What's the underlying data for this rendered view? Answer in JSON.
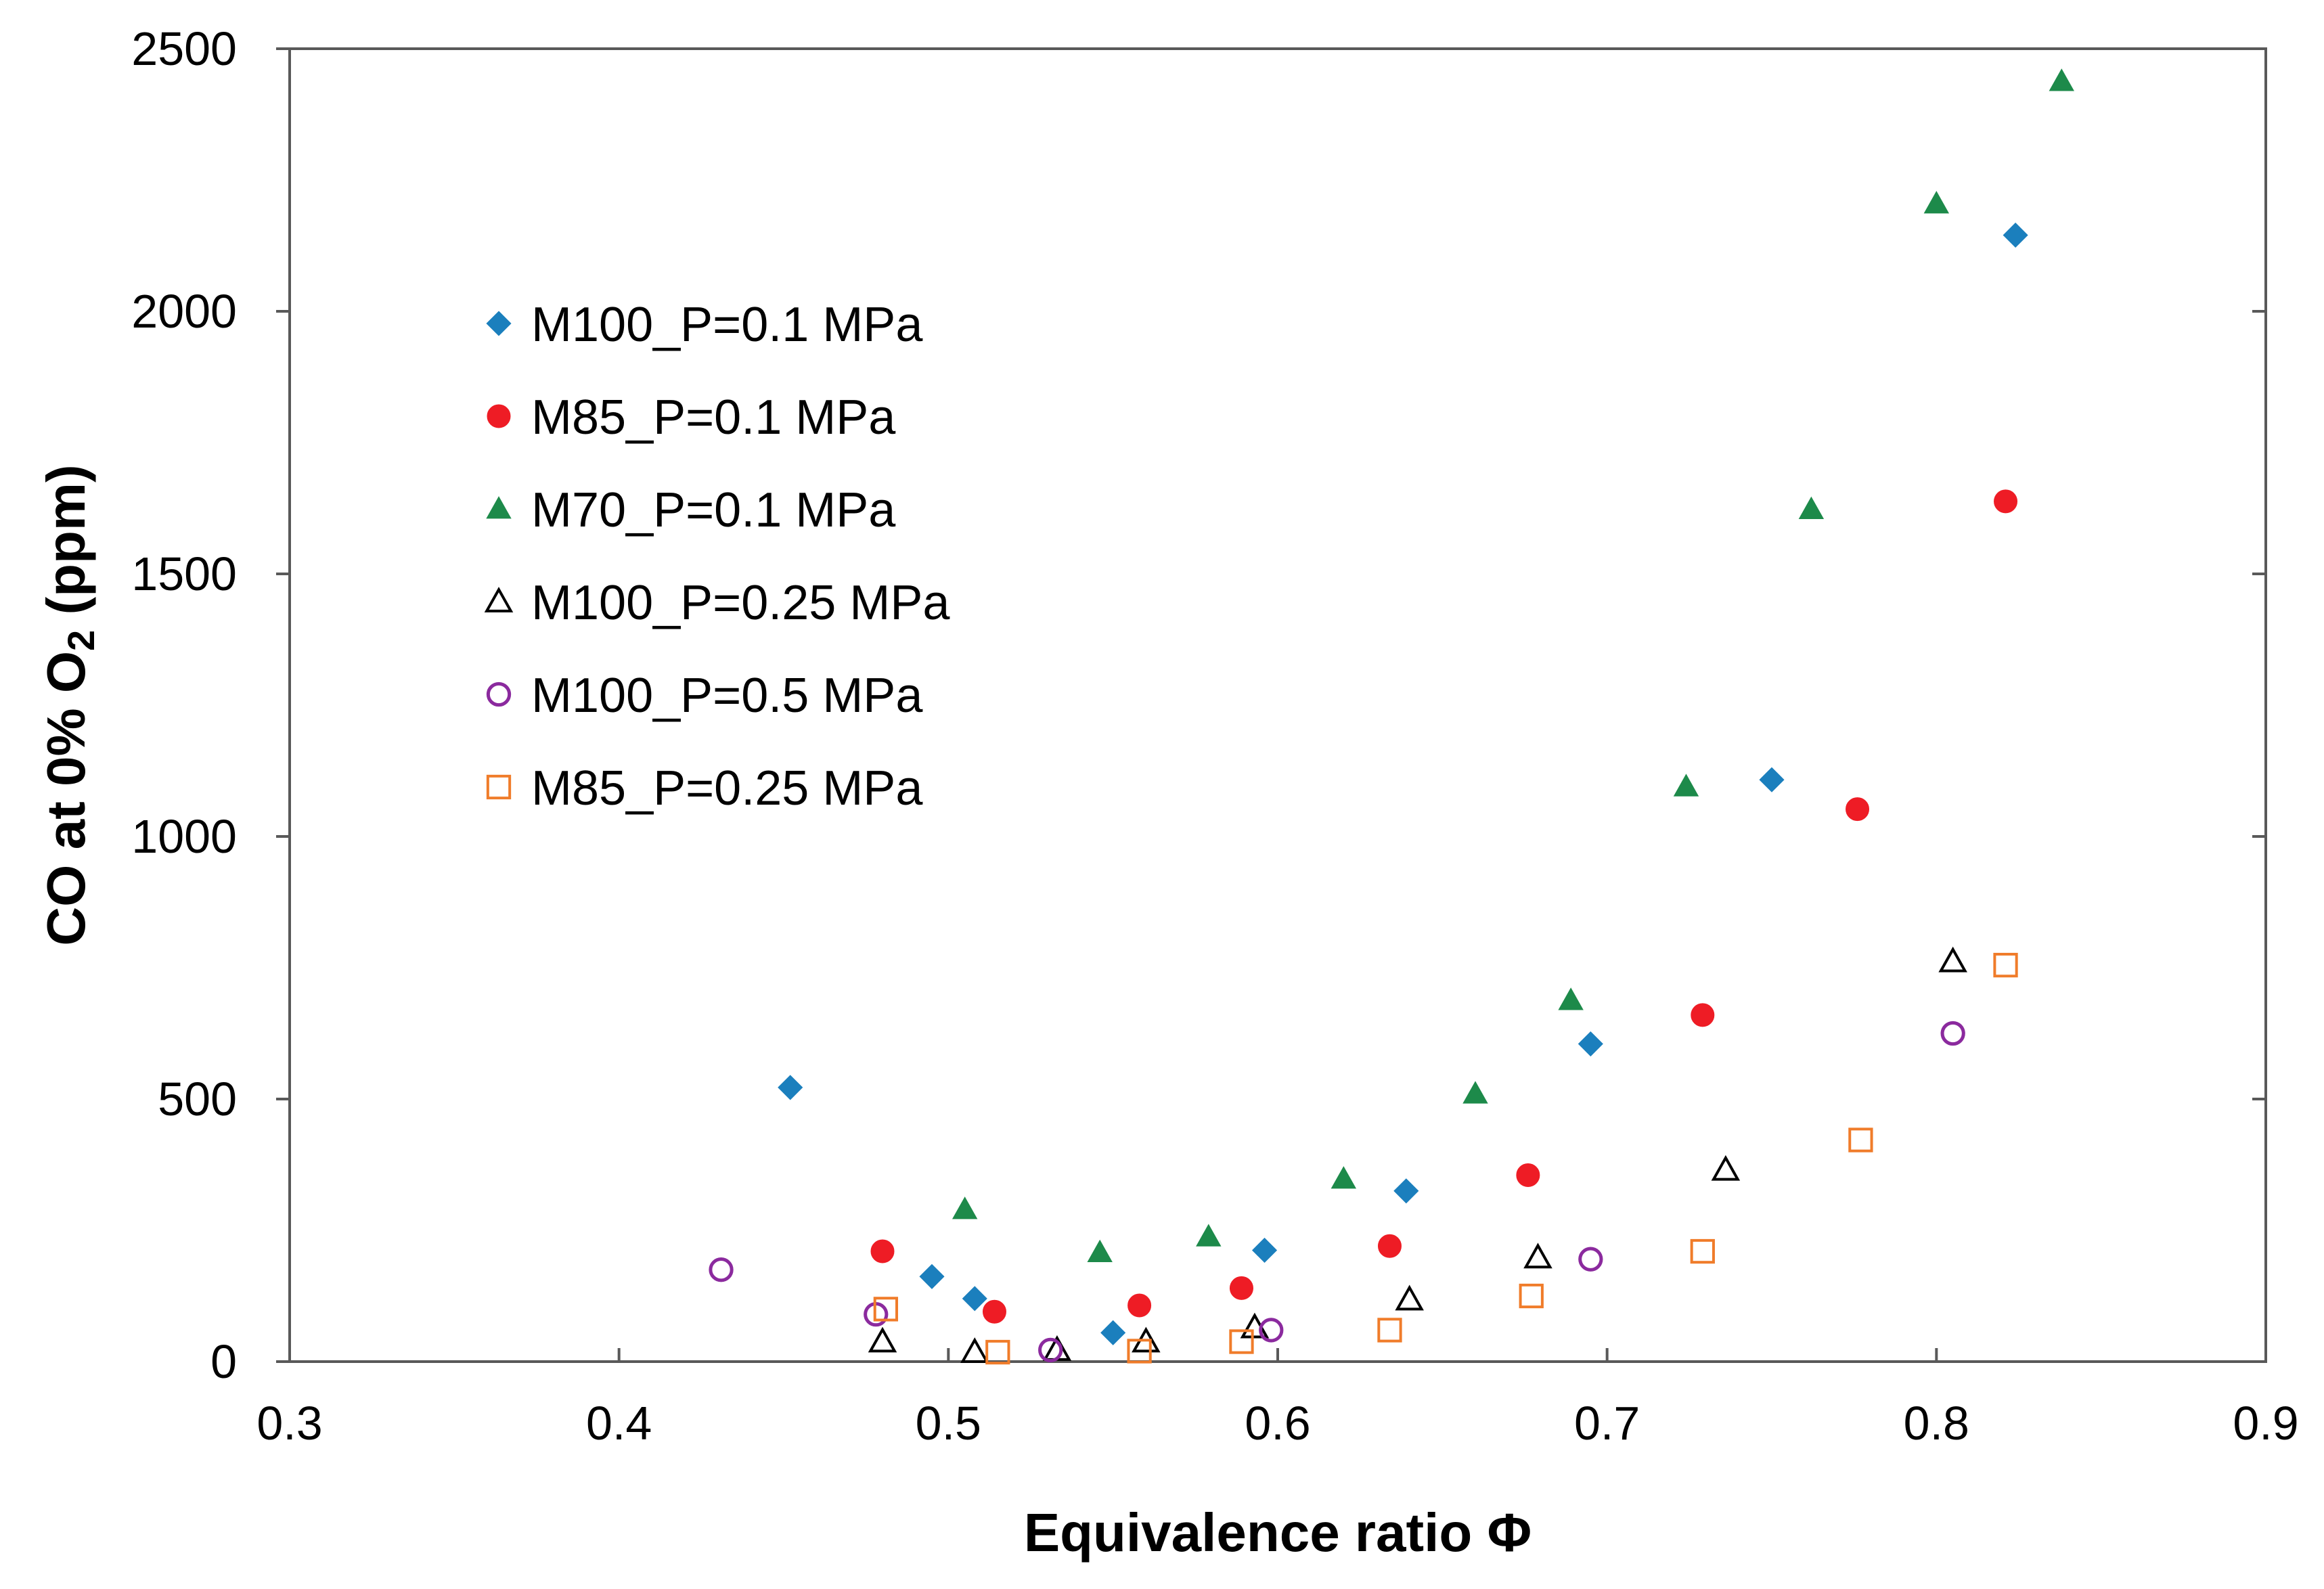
{
  "chart_data": {
    "type": "scatter",
    "title": "",
    "xlabel": "Equivalence ratio Φ",
    "ylabel_main": "CO at 0% O",
    "ylabel_sub": "2",
    "ylabel_tail": " (ppm)",
    "xlim": [
      0.3,
      0.9
    ],
    "ylim": [
      0,
      2500
    ],
    "x_ticks": [
      0.3,
      0.4,
      0.5,
      0.6,
      0.7,
      0.8,
      0.9
    ],
    "x_tick_labels": [
      "0.3",
      "0.4",
      "0.5",
      "0.6",
      "0.7",
      "0.8",
      "0.9"
    ],
    "y_ticks": [
      0,
      500,
      1000,
      1500,
      2000,
      2500
    ],
    "y_tick_labels": [
      "0",
      "500",
      "1000",
      "1500",
      "2000",
      "2500"
    ],
    "grid": false,
    "legend_position": "upper-left",
    "series": [
      {
        "name": "M100_P=0.1 MPa",
        "marker": "diamond",
        "color": "#1b7fbd",
        "filled": true,
        "points": [
          [
            0.452,
            522
          ],
          [
            0.495,
            162
          ],
          [
            0.508,
            120
          ],
          [
            0.55,
            55
          ],
          [
            0.596,
            212
          ],
          [
            0.639,
            325
          ],
          [
            0.695,
            605
          ],
          [
            0.75,
            1108
          ],
          [
            0.824,
            2145
          ]
        ]
      },
      {
        "name": "M85_P=0.1 MPa",
        "marker": "circle",
        "color": "#ee1c25",
        "filled": true,
        "points": [
          [
            0.48,
            210
          ],
          [
            0.514,
            95
          ],
          [
            0.558,
            107
          ],
          [
            0.589,
            140
          ],
          [
            0.634,
            220
          ],
          [
            0.676,
            355
          ],
          [
            0.729,
            660
          ],
          [
            0.776,
            1052
          ],
          [
            0.821,
            1638
          ]
        ]
      },
      {
        "name": "M70_P=0.1 MPa",
        "marker": "triangle",
        "color": "#1d8a4a",
        "filled": true,
        "points": [
          [
            0.505,
            290
          ],
          [
            0.546,
            208
          ],
          [
            0.579,
            238
          ],
          [
            0.62,
            348
          ],
          [
            0.66,
            510
          ],
          [
            0.689,
            688
          ],
          [
            0.724,
            1095
          ],
          [
            0.762,
            1623
          ],
          [
            0.8,
            2205
          ],
          [
            0.838,
            2438
          ]
        ]
      },
      {
        "name": "M100_P=0.25 MPa",
        "marker": "triangle",
        "color": "#000000",
        "filled": false,
        "points": [
          [
            0.48,
            38
          ],
          [
            0.508,
            18
          ],
          [
            0.533,
            22
          ],
          [
            0.56,
            38
          ],
          [
            0.593,
            65
          ],
          [
            0.64,
            118
          ],
          [
            0.679,
            198
          ],
          [
            0.736,
            365
          ],
          [
            0.805,
            762
          ]
        ]
      },
      {
        "name": "M100_P=0.5 MPa",
        "marker": "circle",
        "color": "#8b2a9e",
        "filled": false,
        "points": [
          [
            0.431,
            175
          ],
          [
            0.478,
            90
          ],
          [
            0.531,
            22
          ],
          [
            0.598,
            60
          ],
          [
            0.695,
            195
          ],
          [
            0.805,
            625
          ]
        ]
      },
      {
        "name": "M85_P=0.25 MPa",
        "marker": "square",
        "color": "#f07c2a",
        "filled": false,
        "points": [
          [
            0.481,
            100
          ],
          [
            0.515,
            18
          ],
          [
            0.558,
            20
          ],
          [
            0.589,
            38
          ],
          [
            0.634,
            60
          ],
          [
            0.677,
            125
          ],
          [
            0.729,
            210
          ],
          [
            0.777,
            422
          ],
          [
            0.821,
            755
          ]
        ]
      }
    ]
  }
}
